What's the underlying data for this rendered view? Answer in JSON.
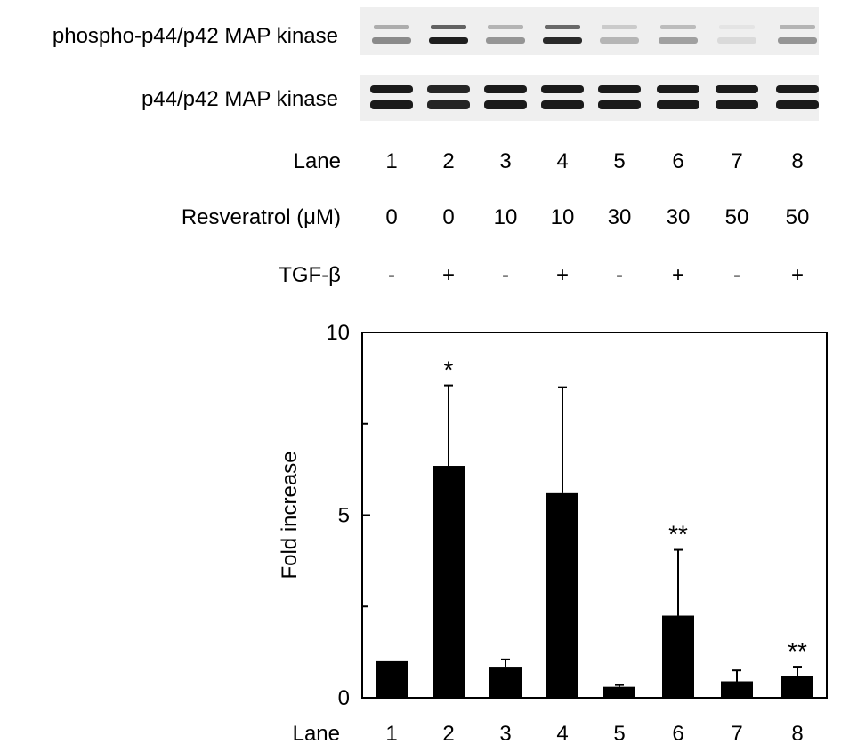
{
  "blot": {
    "phospho_label": "phospho-p44/p42 MAP kinase",
    "total_label": "p44/p42 MAP kinase",
    "phospho_intensity": [
      0.45,
      0.95,
      0.4,
      0.9,
      0.25,
      0.35,
      0.08,
      0.4
    ],
    "total_intensity": [
      0.95,
      0.9,
      0.95,
      0.95,
      0.95,
      0.95,
      0.95,
      0.95
    ]
  },
  "table": {
    "rows": [
      {
        "label": "Lane",
        "values": [
          "1",
          "2",
          "3",
          "4",
          "5",
          "6",
          "7",
          "8"
        ]
      },
      {
        "label": "Resveratrol (μM)",
        "values": [
          "0",
          "0",
          "10",
          "10",
          "30",
          "30",
          "50",
          "50"
        ]
      },
      {
        "label": "TGF-β",
        "values": [
          "-",
          "+",
          "-",
          "+",
          "-",
          "+",
          "-",
          "+"
        ]
      }
    ]
  },
  "chart_data": {
    "type": "bar",
    "categories": [
      "1",
      "2",
      "3",
      "4",
      "5",
      "6",
      "7",
      "8"
    ],
    "values": [
      1.0,
      6.35,
      0.85,
      5.6,
      0.3,
      2.25,
      0.45,
      0.6
    ],
    "errors": [
      0,
      2.2,
      0.2,
      2.9,
      0.05,
      1.8,
      0.3,
      0.25
    ],
    "annotations": [
      "",
      "*",
      "",
      "",
      "",
      "**",
      "",
      "**"
    ],
    "xlabel": "Lane",
    "ylabel": "Fold increase",
    "ylim": [
      0,
      10
    ],
    "yticks": [
      0,
      5,
      10
    ],
    "bar_color": "#000000"
  }
}
